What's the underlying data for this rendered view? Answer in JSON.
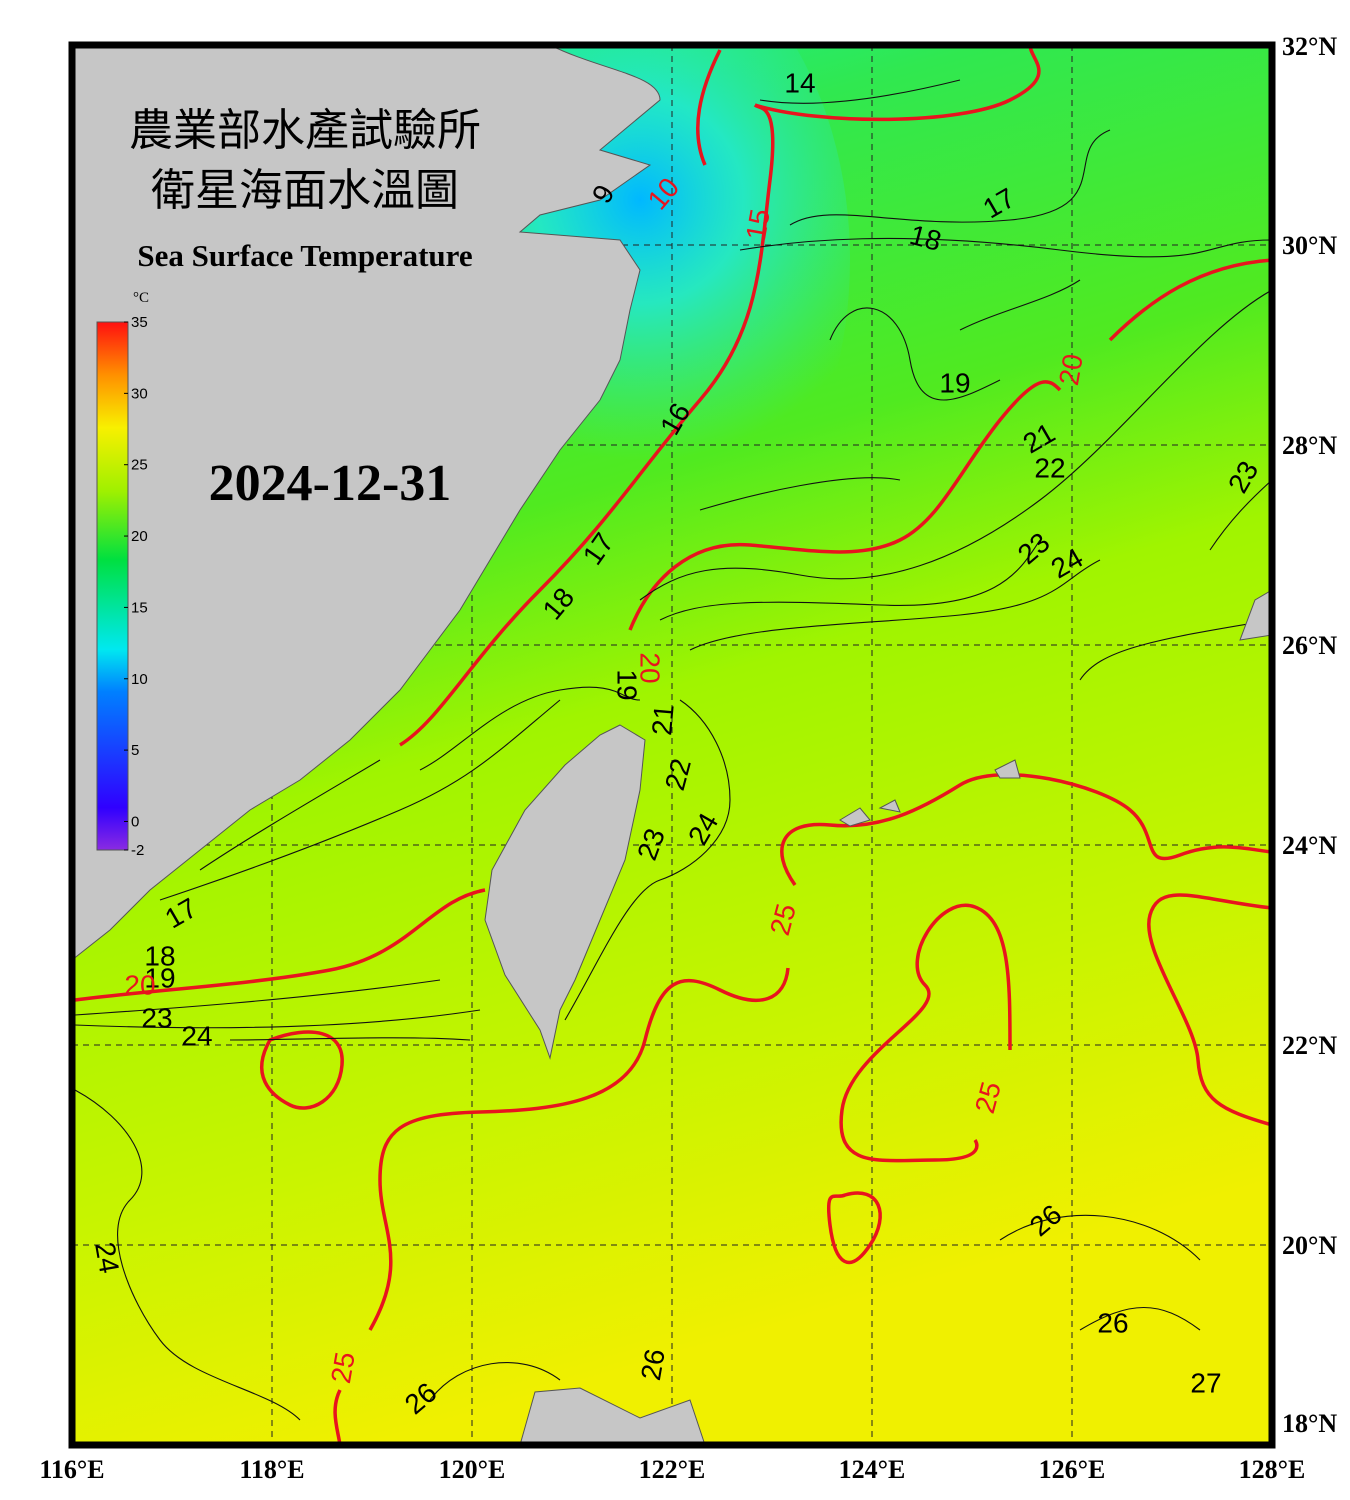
{
  "map": {
    "title_zh": [
      "農業部水產試驗所",
      "衛星海面水溫圖"
    ],
    "title_en": "Sea Surface Temperature",
    "date": "2024-12-31",
    "colorbar": {
      "unit": "°C",
      "ticks": [
        35,
        30,
        25,
        20,
        15,
        10,
        5,
        0,
        -2
      ]
    },
    "lon_labels": [
      "116°E",
      "118°E",
      "120°E",
      "122°E",
      "124°E",
      "126°E",
      "128°E"
    ],
    "lat_labels": [
      "32°N",
      "30°N",
      "28°N",
      "26°N",
      "24°N",
      "22°N",
      "20°N",
      "18°N"
    ],
    "contour_labels": [
      "14",
      "17",
      "18",
      "19",
      "20",
      "21",
      "22",
      "23",
      "23",
      "24",
      "10",
      "9",
      "15",
      "16",
      "17",
      "18",
      "19",
      "20",
      "21",
      "22",
      "23",
      "24",
      "25",
      "25",
      "17",
      "18",
      "19",
      "20",
      "23",
      "24",
      "24",
      "25",
      "26",
      "26",
      "26",
      "26",
      "27"
    ]
  }
}
